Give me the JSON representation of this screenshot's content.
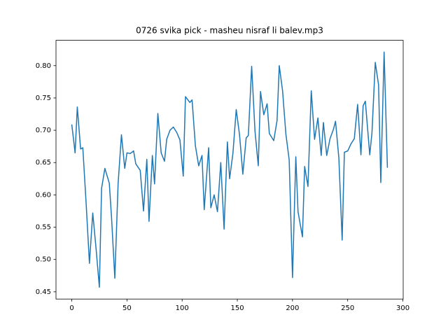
{
  "chart_data": {
    "type": "line",
    "title": "0726 svika pick - masheu nisraf li balev.mp3",
    "color": "#1f77b4",
    "x": [
      0,
      3,
      5,
      8,
      10,
      13,
      16,
      19,
      22,
      25,
      27,
      30,
      34,
      36,
      39,
      42,
      45,
      48,
      50,
      53,
      56,
      58,
      62,
      65,
      68,
      70,
      73,
      75,
      78,
      81,
      84,
      86,
      89,
      92,
      95,
      98,
      101,
      103,
      107,
      109,
      112,
      115,
      118,
      120,
      124,
      126,
      129,
      132,
      135,
      138,
      141,
      143,
      146,
      149,
      152,
      155,
      158,
      160,
      163,
      166,
      169,
      171,
      174,
      177,
      179,
      183,
      186,
      188,
      191,
      194,
      197,
      200,
      203,
      205,
      209,
      211,
      214,
      217,
      220,
      223,
      226,
      228,
      231,
      234,
      237,
      239,
      242,
      245,
      247,
      250,
      253,
      256,
      259,
      262,
      264,
      266,
      270,
      272,
      275,
      278,
      280,
      283,
      286
    ],
    "values": [
      0.709,
      0.665,
      0.736,
      0.671,
      0.673,
      0.587,
      0.494,
      0.572,
      0.517,
      0.457,
      0.61,
      0.641,
      0.618,
      0.566,
      0.471,
      0.618,
      0.693,
      0.641,
      0.665,
      0.664,
      0.668,
      0.648,
      0.638,
      0.575,
      0.655,
      0.559,
      0.661,
      0.617,
      0.726,
      0.665,
      0.652,
      0.686,
      0.7,
      0.705,
      0.697,
      0.685,
      0.629,
      0.752,
      0.743,
      0.747,
      0.676,
      0.645,
      0.661,
      0.577,
      0.673,
      0.58,
      0.6,
      0.574,
      0.65,
      0.547,
      0.682,
      0.625,
      0.664,
      0.732,
      0.693,
      0.632,
      0.688,
      0.692,
      0.799,
      0.699,
      0.645,
      0.76,
      0.724,
      0.741,
      0.695,
      0.684,
      0.715,
      0.8,
      0.761,
      0.694,
      0.654,
      0.472,
      0.659,
      0.574,
      0.535,
      0.644,
      0.613,
      0.761,
      0.686,
      0.719,
      0.661,
      0.712,
      0.661,
      0.687,
      0.701,
      0.714,
      0.657,
      0.53,
      0.666,
      0.668,
      0.679,
      0.687,
      0.74,
      0.662,
      0.738,
      0.745,
      0.662,
      0.696,
      0.805,
      0.77,
      0.619,
      0.821,
      0.642
    ],
    "xlim": [
      -14.3,
      300.3
    ],
    "xticks": [
      0,
      50,
      100,
      150,
      200,
      250,
      300
    ],
    "ylim": [
      0.4388,
      0.8392
    ],
    "yticks": [
      0.45,
      {
        "value": 0.5,
        "label": "0.50"
      },
      0.55,
      {
        "value": 0.6,
        "label": "0.60"
      },
      0.65,
      {
        "value": 0.7,
        "label": "0.70"
      },
      0.75,
      {
        "value": 0.8,
        "label": "0.80"
      }
    ],
    "grid": false
  }
}
